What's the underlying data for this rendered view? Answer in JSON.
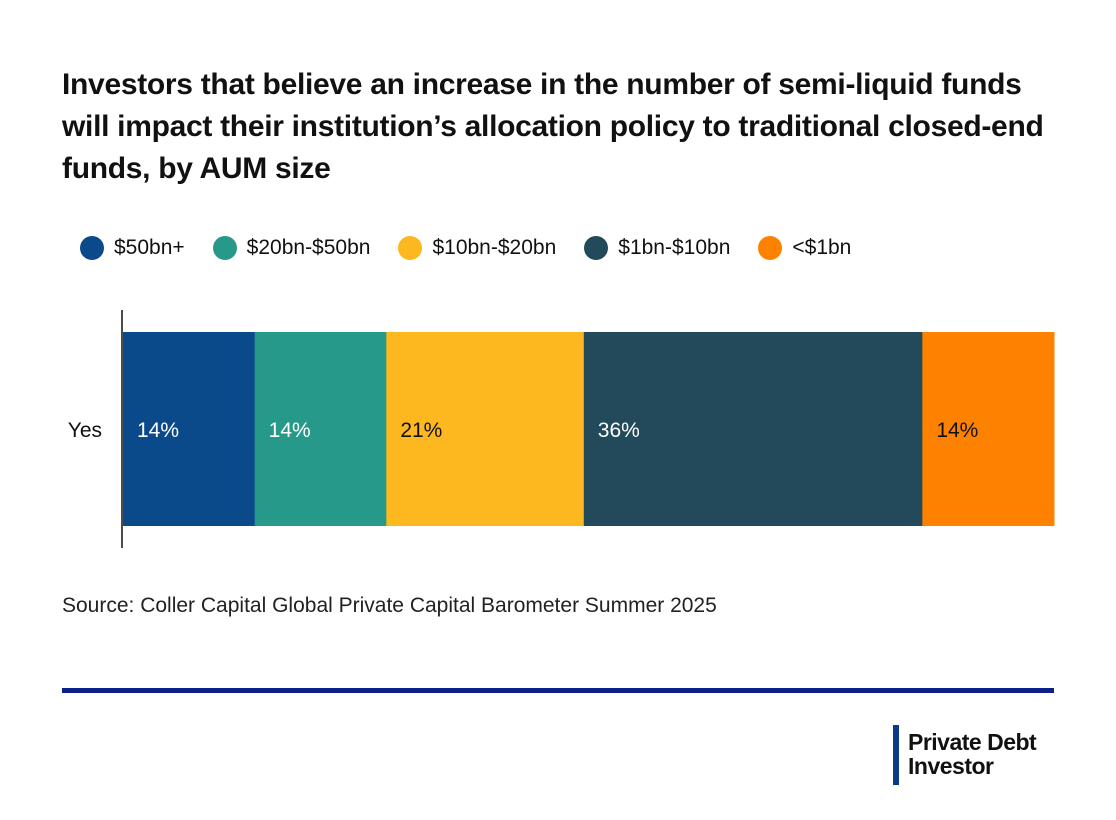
{
  "chart_data": {
    "type": "bar",
    "orientation": "horizontal-stacked",
    "title": "Investors that believe an increase in the number of semi-liquid funds will impact their institution’s allocation policy to traditional closed-end funds, by AUM size",
    "categories": [
      "Yes"
    ],
    "series": [
      {
        "name": "$50bn+",
        "values": [
          14
        ],
        "label": "14%",
        "color": "#0b4a8a",
        "label_color": "#ffffff"
      },
      {
        "name": "$20bn-$50bn",
        "values": [
          14
        ],
        "label": "14%",
        "color": "#27998a",
        "label_color": "#ffffff"
      },
      {
        "name": "$10bn-$20bn",
        "values": [
          21
        ],
        "label": "21%",
        "color": "#fdb71f",
        "label_color": "#111111"
      },
      {
        "name": "$1bn-$10bn",
        "values": [
          36
        ],
        "label": "36%",
        "color": "#234a5a",
        "label_color": "#ffffff"
      },
      {
        "name": "<$1bn",
        "values": [
          14
        ],
        "label": "14%",
        "color": "#fe8200",
        "label_color": "#111111"
      }
    ],
    "xlabel": "",
    "ylabel": "",
    "legend_position": "top",
    "grid": false,
    "source": "Source: Coller Capital Global Private Capital Barometer Summer 2025"
  },
  "brand": {
    "name": "Private Debt Investor",
    "line1": "Private Debt",
    "line2": "Investor",
    "color": "#0d1f8a"
  }
}
